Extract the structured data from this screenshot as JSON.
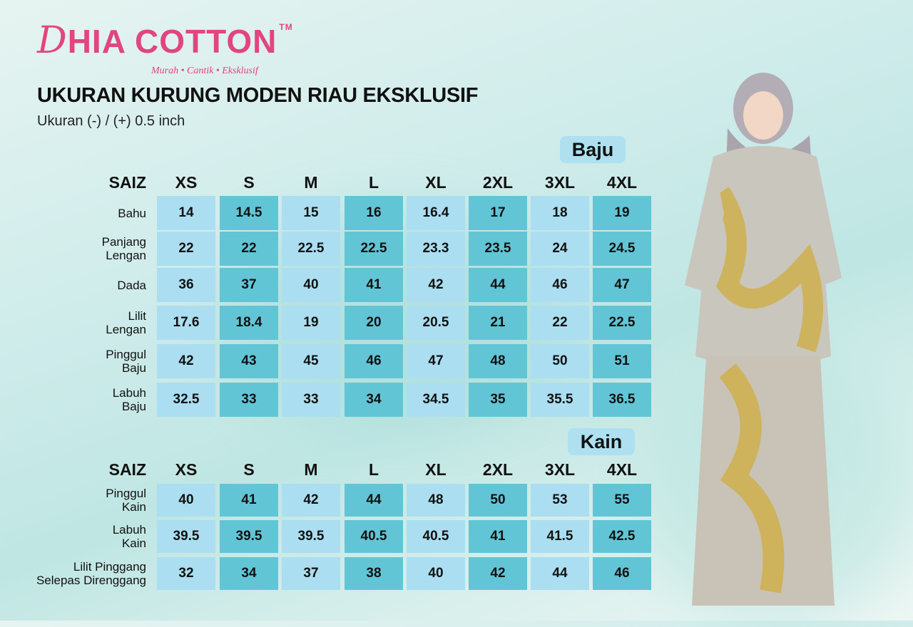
{
  "brand": {
    "name_initial": "D",
    "name_rest": "HIA COTTON",
    "trademark": "TM",
    "tagline": "Murah • Cantik • Eksklusif",
    "color": "#e2457f"
  },
  "title": "UKURAN KURUNG MODEN RIAU EKSKLUSIF",
  "subtitle": "Ukuran (-) / (+) 0.5 inch",
  "colors": {
    "cell_light": "#abdef0",
    "cell_dark": "#62c5d6",
    "badge": "#aee0f0"
  },
  "baju": {
    "badge": "Baju",
    "size_header": "SAIZ",
    "sizes": [
      "XS",
      "S",
      "M",
      "L",
      "XL",
      "2XL",
      "3XL",
      "4XL"
    ],
    "rows": [
      {
        "label": [
          "Bahu"
        ],
        "values": [
          "14",
          "14.5",
          "15",
          "16",
          "16.4",
          "17",
          "18",
          "19"
        ]
      },
      {
        "label": [
          "Panjang",
          "Lengan"
        ],
        "values": [
          "22",
          "22",
          "22.5",
          "22.5",
          "23.3",
          "23.5",
          "24",
          "24.5"
        ]
      },
      {
        "label": [
          "Dada"
        ],
        "values": [
          "36",
          "37",
          "40",
          "41",
          "42",
          "44",
          "46",
          "47"
        ]
      },
      {
        "label": [
          "Lilit",
          "Lengan"
        ],
        "values": [
          "17.6",
          "18.4",
          "19",
          "20",
          "20.5",
          "21",
          "22",
          "22.5"
        ]
      },
      {
        "label": [
          "Pinggul",
          "Baju"
        ],
        "values": [
          "42",
          "43",
          "45",
          "46",
          "47",
          "48",
          "50",
          "51"
        ]
      },
      {
        "label": [
          "Labuh",
          "Baju"
        ],
        "values": [
          "32.5",
          "33",
          "33",
          "34",
          "34.5",
          "35",
          "35.5",
          "36.5"
        ]
      }
    ]
  },
  "kain": {
    "badge": "Kain",
    "size_header": "SAIZ",
    "sizes": [
      "XS",
      "S",
      "M",
      "L",
      "XL",
      "2XL",
      "3XL",
      "4XL"
    ],
    "rows": [
      {
        "label": [
          "Pinggul",
          "Kain"
        ],
        "values": [
          "40",
          "41",
          "42",
          "44",
          "48",
          "50",
          "53",
          "55"
        ]
      },
      {
        "label": [
          "Labuh",
          "Kain"
        ],
        "values": [
          "39.5",
          "39.5",
          "39.5",
          "40.5",
          "40.5",
          "41",
          "41.5",
          "42.5"
        ]
      },
      {
        "label": [
          "Lilit Pinggang",
          "Selepas Direnggang"
        ],
        "values": [
          "32",
          "34",
          "37",
          "38",
          "40",
          "42",
          "44",
          "46"
        ]
      }
    ]
  }
}
